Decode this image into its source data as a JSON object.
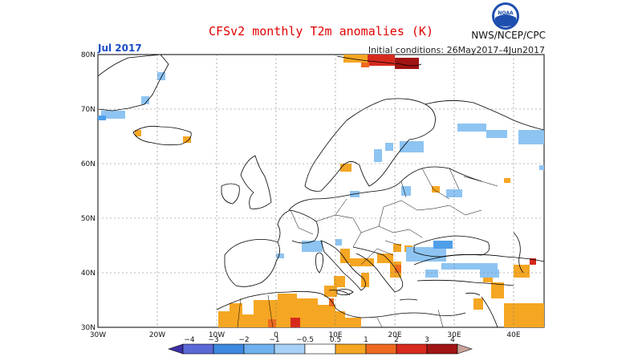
{
  "header": {
    "title": "CFSv2 monthly T2m anomalies (K)",
    "month": "Jul 2017",
    "initial_conditions": "Initial conditions: 26May2017–4Jun2017",
    "agency": "NWS/NCEP/CPC",
    "logo_text": "NOAA"
  },
  "axes": {
    "lat_labels": [
      "80N",
      "70N",
      "60N",
      "50N",
      "40N",
      "30N"
    ],
    "lon_labels": [
      "30W",
      "20W",
      "10W",
      "0",
      "10E",
      "20E",
      "30E",
      "40E"
    ]
  },
  "colorbar": {
    "labels": [
      "−4",
      "−3",
      "−2",
      "−1",
      "−0.5",
      "0.5",
      "1",
      "2",
      "3",
      "4"
    ],
    "colors": [
      "#3c2fa5",
      "#5b68d6",
      "#3d88e0",
      "#6fb1ee",
      "#a7d1f6",
      "#ffffff",
      "#f5a623",
      "#ee6a20",
      "#d62a1d",
      "#a01414",
      "#c9a29a"
    ]
  },
  "anomaly_colors": {
    "light_blue": "#8ec4f2",
    "blue": "#4f9fe8",
    "orange": "#f5a623",
    "dark_orange": "#ee6a20",
    "red": "#d62a1d",
    "dark_red": "#a01414"
  }
}
